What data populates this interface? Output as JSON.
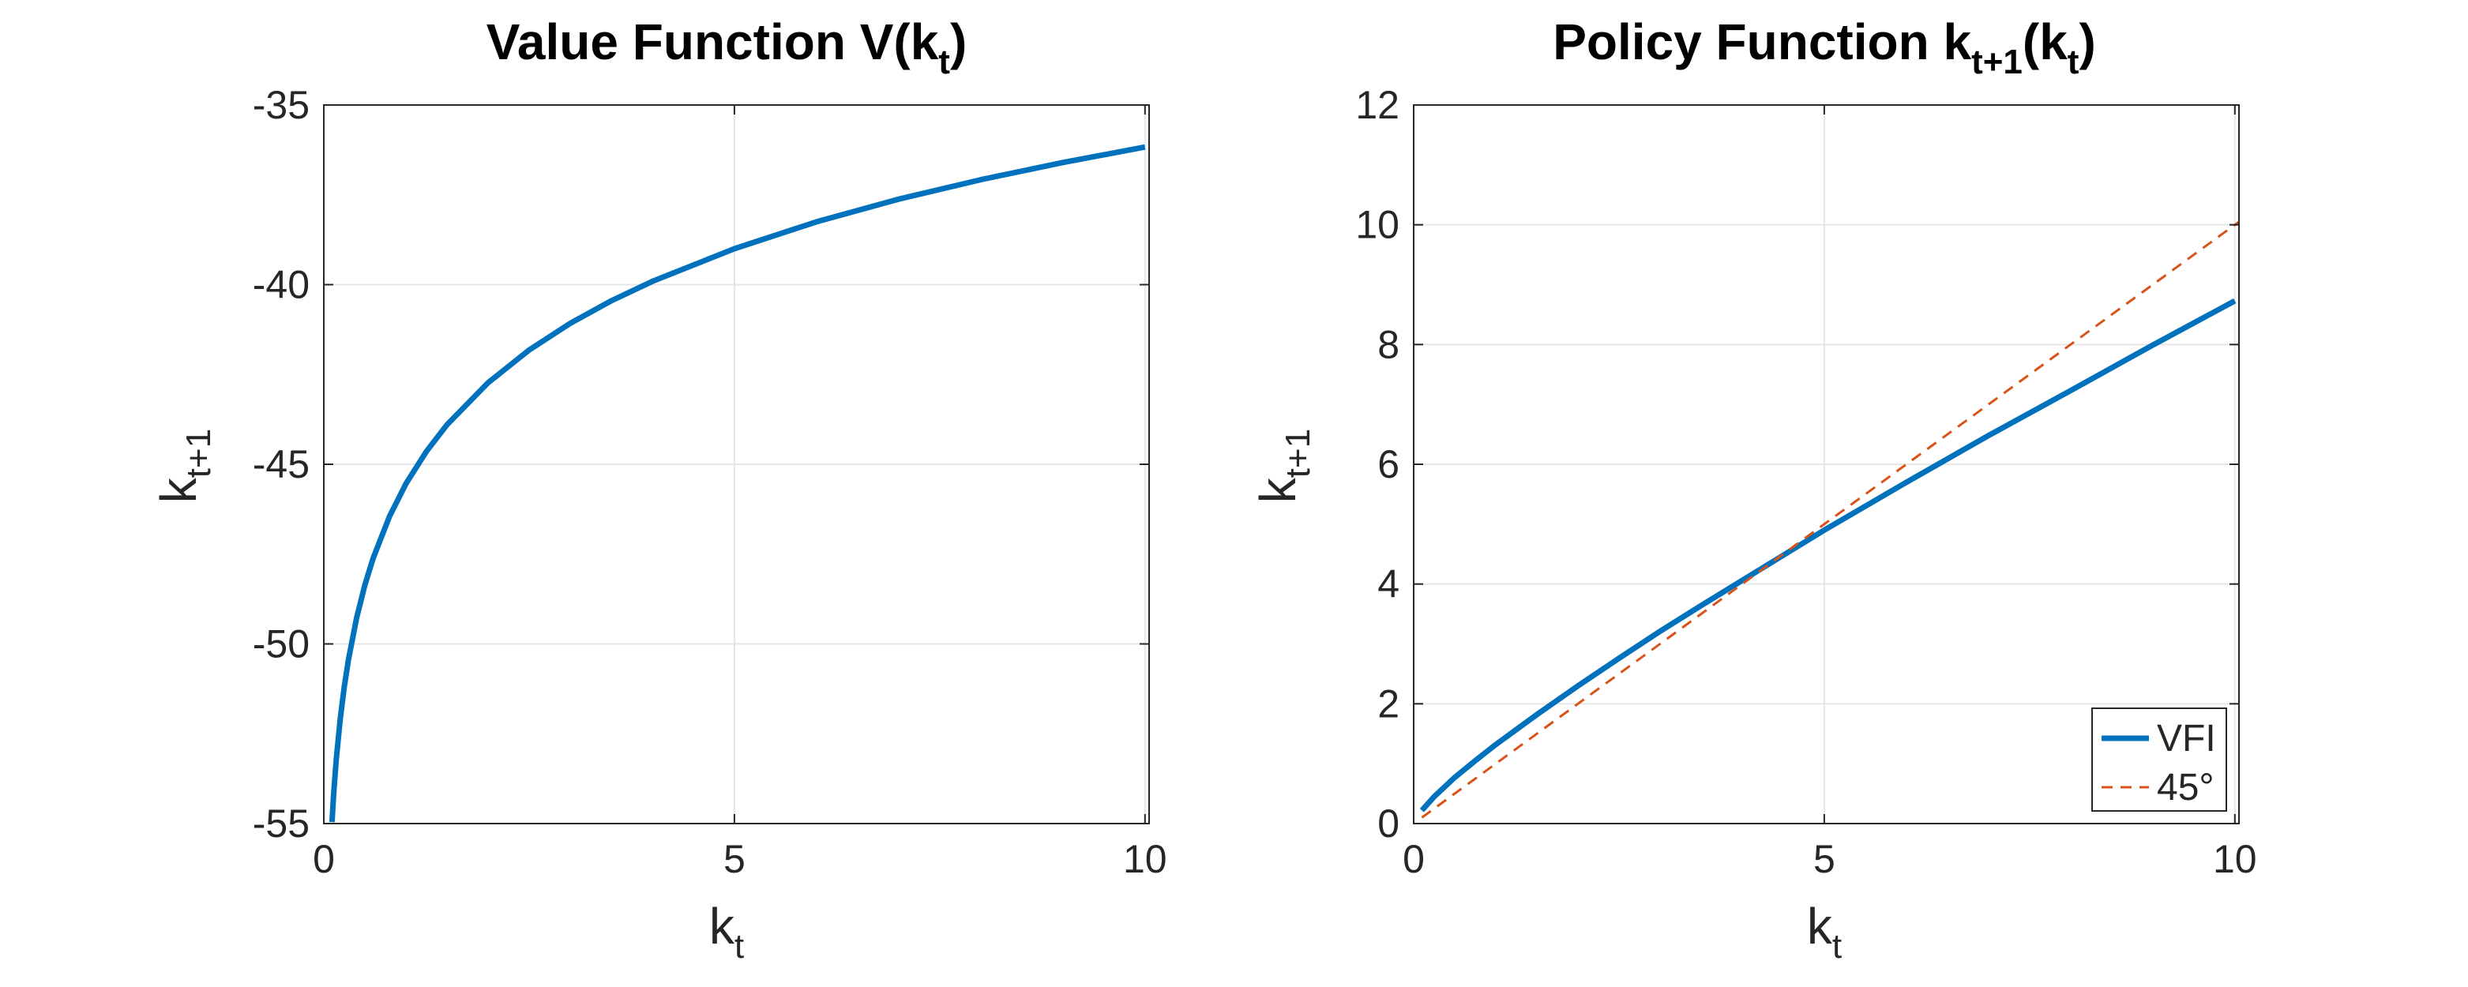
{
  "chart_data": [
    {
      "type": "line",
      "title": {
        "main": "Value Function V(k",
        "sub": "t",
        "tail": ")"
      },
      "xlabel": {
        "main": "k",
        "sub": "t"
      },
      "ylabel": {
        "main": "k",
        "sub": "t+1"
      },
      "xlim": [
        0,
        10.05
      ],
      "ylim": [
        -55,
        -35
      ],
      "xticks": [
        0,
        5,
        10
      ],
      "xtick_labels": [
        "0",
        "5",
        "10"
      ],
      "yticks": [
        -55,
        -50,
        -45,
        -40,
        -35
      ],
      "ytick_labels": [
        "-55",
        "-50",
        "-45",
        "-40",
        "-35"
      ],
      "grid": true,
      "series": [
        {
          "color": "#0072BD",
          "style": "solid",
          "x": [
            0.1,
            0.12,
            0.15,
            0.2,
            0.25,
            0.3,
            0.4,
            0.5,
            0.6,
            0.8,
            1.0,
            1.25,
            1.5,
            2.0,
            2.5,
            3.0,
            3.5,
            4.0,
            5.0,
            6.0,
            7.0,
            8.0,
            9.0,
            10.0
          ],
          "y": [
            -54.96,
            -54.17,
            -53.26,
            -52.09,
            -51.18,
            -50.44,
            -49.27,
            -48.36,
            -47.62,
            -46.45,
            -45.54,
            -44.64,
            -43.9,
            -42.73,
            -41.82,
            -41.08,
            -40.45,
            -39.91,
            -39.0,
            -38.25,
            -37.62,
            -37.08,
            -36.6,
            -36.17
          ]
        }
      ]
    },
    {
      "type": "line",
      "title": {
        "main": "Policy Function k",
        "sub": "t+1",
        "mid": "(k",
        "sub2": "t",
        "tail": ")"
      },
      "xlabel": {
        "main": "k",
        "sub": "t"
      },
      "ylabel": {
        "main": "k",
        "sub": "t+1"
      },
      "xlim": [
        0,
        10.05
      ],
      "ylim": [
        0,
        12
      ],
      "xticks": [
        0,
        5,
        10
      ],
      "xtick_labels": [
        "0",
        "5",
        "10"
      ],
      "yticks": [
        0,
        2,
        4,
        6,
        8,
        10,
        12
      ],
      "ytick_labels": [
        "0",
        "2",
        "4",
        "6",
        "8",
        "10",
        "12"
      ],
      "grid": true,
      "legend": {
        "position": "bottom-right",
        "entries": [
          "VFI",
          "45°"
        ]
      },
      "series": [
        {
          "name": "VFI",
          "color": "#0072BD",
          "style": "solid",
          "x": [
            0.1,
            0.25,
            0.5,
            0.75,
            1.0,
            1.5,
            2.0,
            2.5,
            3.0,
            3.5,
            4.0,
            5.0,
            6.0,
            7.0,
            8.0,
            9.0,
            10.0
          ],
          "y": [
            0.22,
            0.45,
            0.77,
            1.05,
            1.32,
            1.82,
            2.3,
            2.76,
            3.21,
            3.64,
            4.06,
            4.9,
            5.7,
            6.48,
            7.23,
            7.99,
            8.73
          ]
        },
        {
          "name": "45°",
          "color": "#D95319",
          "style": "dashed",
          "x": [
            0.1,
            10.05
          ],
          "y": [
            0.1,
            10.05
          ]
        }
      ]
    }
  ],
  "colors": {
    "series1": "#0072BD",
    "series2": "#D95319",
    "grid": "#e6e6e6",
    "axis": "#262626"
  }
}
